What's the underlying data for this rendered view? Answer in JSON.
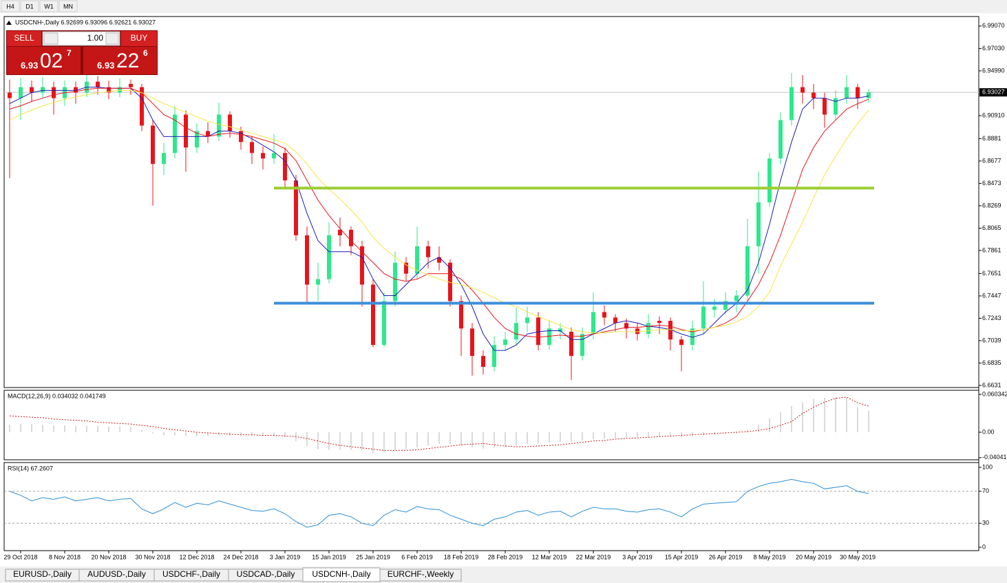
{
  "ui": {
    "timeframes": [
      "H4",
      "D1",
      "W1",
      "MN"
    ],
    "trade": {
      "sell": "SELL",
      "lot": "1.00",
      "buy": "BUY",
      "sell_price": {
        "big": "6.93",
        "pips": "02",
        "frac": "7"
      },
      "buy_price": {
        "big": "6.93",
        "pips": "22",
        "frac": "6"
      }
    },
    "tabs": [
      "EURUSD-,Daily",
      "AUDUSD-,Daily",
      "USDCHF-,Daily",
      "USDCAD-,Daily",
      "USDCNH-,Daily",
      "EURCHF-,Weekly"
    ],
    "active_tab": 4
  },
  "chart_data": [
    {
      "type": "candlestick",
      "title": "USDCNH-,Daily  6.92699 6.93096 6.92621 6.93027",
      "up_color": "#2de88c",
      "down_color": "#e8141b",
      "open": [
        6.93,
        6.925,
        6.935,
        6.93,
        6.935,
        6.925,
        6.935,
        6.93,
        6.94,
        6.935,
        6.93,
        6.938,
        6.935,
        6.9,
        6.865,
        6.875,
        6.91,
        6.88,
        6.895,
        6.89,
        6.91,
        6.895,
        6.885,
        6.875,
        6.87,
        6.875,
        6.85,
        6.8,
        6.755,
        6.76,
        6.805,
        6.805,
        6.79,
        6.755,
        6.7,
        6.74,
        6.775,
        6.765,
        6.79,
        6.78,
        6.775,
        6.74,
        6.715,
        6.69,
        6.68,
        6.7,
        6.705,
        6.72,
        6.725,
        6.7,
        6.712,
        6.712,
        6.69,
        6.71,
        6.73,
        6.725,
        6.72,
        6.715,
        6.71,
        6.722,
        6.722,
        6.705,
        6.7,
        6.715,
        6.732,
        6.732,
        6.74,
        6.745,
        6.79,
        6.83,
        6.87,
        6.905,
        6.935,
        6.93,
        6.925,
        6.91,
        6.925,
        6.935,
        6.925
      ],
      "high": [
        6.942,
        6.943,
        6.941,
        6.944,
        6.94,
        6.941,
        6.94,
        6.946,
        6.945,
        6.941,
        6.943,
        6.942,
        6.938,
        6.905,
        6.884,
        6.918,
        6.914,
        6.902,
        6.903,
        6.921,
        6.913,
        6.899,
        6.89,
        6.881,
        6.892,
        6.88,
        6.855,
        6.808,
        6.775,
        6.812,
        6.816,
        6.808,
        6.795,
        6.76,
        6.748,
        6.785,
        6.78,
        6.808,
        6.795,
        6.79,
        6.778,
        6.745,
        6.72,
        6.695,
        6.708,
        6.712,
        6.734,
        6.735,
        6.73,
        6.722,
        6.72,
        6.716,
        6.716,
        6.748,
        6.736,
        6.728,
        6.724,
        6.72,
        6.728,
        6.726,
        6.725,
        6.708,
        6.722,
        6.758,
        6.742,
        6.748,
        6.75,
        6.815,
        6.858,
        6.875,
        6.912,
        6.948,
        6.946,
        6.938,
        6.93,
        6.932,
        6.946,
        6.938,
        6.933
      ],
      "low": [
        6.852,
        6.905,
        6.922,
        6.925,
        6.91,
        6.918,
        6.92,
        6.926,
        6.928,
        6.924,
        6.926,
        6.928,
        6.895,
        6.827,
        6.855,
        6.87,
        6.858,
        6.875,
        6.884,
        6.886,
        6.889,
        6.878,
        6.865,
        6.86,
        6.865,
        6.842,
        6.795,
        6.738,
        6.74,
        6.756,
        6.79,
        6.782,
        6.735,
        6.698,
        6.698,
        6.735,
        6.758,
        6.76,
        6.77,
        6.768,
        6.735,
        6.69,
        6.672,
        6.673,
        6.676,
        6.695,
        6.7,
        6.712,
        6.695,
        6.696,
        6.705,
        6.668,
        6.686,
        6.705,
        6.718,
        6.712,
        6.706,
        6.704,
        6.706,
        6.71,
        6.695,
        6.676,
        6.695,
        6.71,
        6.725,
        6.728,
        6.73,
        6.74,
        6.765,
        6.826,
        6.865,
        6.9,
        6.92,
        6.915,
        6.898,
        6.905,
        6.92,
        6.915,
        6.921
      ],
      "close": [
        6.925,
        6.935,
        6.93,
        6.935,
        6.925,
        6.935,
        6.93,
        6.94,
        6.935,
        6.93,
        6.935,
        6.935,
        6.9,
        6.865,
        6.875,
        6.91,
        6.88,
        6.895,
        6.89,
        6.91,
        6.895,
        6.885,
        6.875,
        6.87,
        6.875,
        6.85,
        6.8,
        6.755,
        6.76,
        6.8,
        6.8,
        6.79,
        6.755,
        6.7,
        6.74,
        6.775,
        6.765,
        6.79,
        6.78,
        6.775,
        6.74,
        6.715,
        6.69,
        6.68,
        6.7,
        6.705,
        6.72,
        6.725,
        6.7,
        6.715,
        6.715,
        6.69,
        6.71,
        6.73,
        6.725,
        6.72,
        6.715,
        6.71,
        6.72,
        6.72,
        6.705,
        6.7,
        6.715,
        6.735,
        6.735,
        6.74,
        6.745,
        6.79,
        6.83,
        6.87,
        6.905,
        6.935,
        6.93,
        6.925,
        6.91,
        6.925,
        6.935,
        6.925,
        6.93027
      ],
      "moving_averages": [
        {
          "color": "#1c1cb4",
          "values": [
            6.92,
            6.925,
            6.93,
            6.932,
            6.932,
            6.932,
            6.932,
            6.935,
            6.935,
            6.934,
            6.934,
            6.934,
            6.925,
            6.905,
            6.89,
            6.89,
            6.89,
            6.89,
            6.89,
            6.895,
            6.895,
            6.893,
            6.888,
            6.882,
            6.876,
            6.868,
            6.85,
            6.82,
            6.795,
            6.785,
            6.785,
            6.785,
            6.78,
            6.76,
            6.745,
            6.745,
            6.755,
            6.765,
            6.775,
            6.78,
            6.77,
            6.755,
            6.735,
            6.71,
            6.695,
            6.695,
            6.7,
            6.71,
            6.712,
            6.713,
            6.713,
            6.705,
            6.705,
            6.71,
            6.715,
            6.72,
            6.722,
            6.72,
            6.717,
            6.716,
            6.714,
            6.71,
            6.707,
            6.71,
            6.72,
            6.73,
            6.738,
            6.75,
            6.775,
            6.81,
            6.85,
            6.885,
            6.915,
            6.925,
            6.925,
            6.922,
            6.925,
            6.925,
            6.927
          ]
        },
        {
          "color": "#e8141b",
          "values": [
            6.915,
            6.918,
            6.922,
            6.925,
            6.928,
            6.93,
            6.931,
            6.933,
            6.934,
            6.934,
            6.934,
            6.934,
            6.93,
            6.92,
            6.91,
            6.905,
            6.898,
            6.893,
            6.89,
            6.892,
            6.893,
            6.892,
            6.89,
            6.887,
            6.884,
            6.879,
            6.868,
            6.85,
            6.832,
            6.818,
            6.806,
            6.795,
            6.785,
            6.775,
            6.765,
            6.76,
            6.758,
            6.76,
            6.765,
            6.765,
            6.765,
            6.76,
            6.75,
            6.738,
            6.725,
            6.715,
            6.71,
            6.708,
            6.707,
            6.708,
            6.709,
            6.708,
            6.708,
            6.71,
            6.712,
            6.714,
            6.716,
            6.716,
            6.717,
            6.718,
            6.717,
            6.714,
            6.712,
            6.714,
            6.716,
            6.72,
            6.726,
            6.74,
            6.755,
            6.775,
            6.8,
            6.83,
            6.86,
            6.88,
            6.895,
            6.905,
            6.915,
            6.92,
            6.924
          ]
        },
        {
          "color": "#f5e642",
          "values": [
            6.905,
            6.91,
            6.914,
            6.918,
            6.921,
            6.924,
            6.926,
            6.928,
            6.93,
            6.931,
            6.932,
            6.932,
            6.93,
            6.925,
            6.92,
            6.916,
            6.912,
            6.908,
            6.904,
            6.901,
            6.899,
            6.896,
            6.893,
            6.89,
            6.887,
            6.884,
            6.876,
            6.865,
            6.852,
            6.842,
            6.833,
            6.823,
            6.812,
            6.798,
            6.788,
            6.78,
            6.773,
            6.768,
            6.764,
            6.76,
            6.757,
            6.755,
            6.752,
            6.748,
            6.743,
            6.738,
            6.735,
            6.73,
            6.726,
            6.722,
            6.718,
            6.714,
            6.712,
            6.711,
            6.711,
            6.712,
            6.712,
            6.712,
            6.713,
            6.714,
            6.714,
            6.713,
            6.713,
            6.714,
            6.716,
            6.718,
            6.721,
            6.726,
            6.735,
            6.748,
            6.772,
            6.792,
            6.812,
            6.834,
            6.855,
            6.872,
            6.888,
            6.902,
            6.914
          ]
        }
      ],
      "hlines": [
        {
          "value": 6.843,
          "color": "#9acd32"
        },
        {
          "value": 6.7381,
          "color": "#3d8fd9"
        }
      ],
      "last_price": 6.93027,
      "ylim": [
        6.6612,
        6.9994
      ],
      "yticks": [
        {
          "value": 6.9907,
          "label": "6.99070"
        },
        {
          "value": 6.9703,
          "label": "6.97030"
        },
        {
          "value": 6.9499,
          "label": "6.94990"
        },
        {
          "value": 6.9091,
          "label": "6.90910"
        },
        6.8881,
        6.8677,
        6.8473,
        6.8269,
        6.8065,
        6.7861,
        6.7651,
        6.7447,
        6.7243,
        6.7039,
        6.6835,
        6.6631
      ]
    },
    {
      "type": "macd",
      "title": "MACD(12,26,9) 0.034032 0.041749",
      "histogram_color": "#b4b4b4",
      "signal_color": "#d01818",
      "histogram": [
        0.012,
        0.013,
        0.013,
        0.012,
        0.011,
        0.011,
        0.01,
        0.01,
        0.01,
        0.009,
        0.009,
        0.008,
        0.004,
        -0.002,
        -0.005,
        -0.005,
        -0.006,
        -0.006,
        -0.006,
        -0.005,
        -0.005,
        -0.005,
        -0.006,
        -0.006,
        -0.006,
        -0.008,
        -0.014,
        -0.022,
        -0.027,
        -0.028,
        -0.028,
        -0.028,
        -0.029,
        -0.033,
        -0.032,
        -0.029,
        -0.027,
        -0.024,
        -0.021,
        -0.019,
        -0.019,
        -0.021,
        -0.024,
        -0.026,
        -0.025,
        -0.024,
        -0.021,
        -0.019,
        -0.018,
        -0.016,
        -0.015,
        -0.015,
        -0.013,
        -0.011,
        -0.01,
        -0.009,
        -0.008,
        -0.008,
        -0.007,
        -0.007,
        -0.007,
        -0.008,
        -0.007,
        -0.005,
        -0.004,
        -0.003,
        -0.002,
        0.004,
        0.012,
        0.022,
        0.032,
        0.042,
        0.048,
        0.053,
        0.055,
        0.056,
        0.055,
        0.04,
        0.034032
      ],
      "signal": [
        0.026,
        0.025,
        0.024,
        0.023,
        0.021,
        0.02,
        0.019,
        0.018,
        0.016,
        0.015,
        0.014,
        0.013,
        0.011,
        0.009,
        0.006,
        0.004,
        0.002,
        0.0,
        -0.001,
        -0.002,
        -0.003,
        -0.004,
        -0.004,
        -0.005,
        -0.005,
        -0.006,
        -0.007,
        -0.01,
        -0.014,
        -0.018,
        -0.021,
        -0.023,
        -0.025,
        -0.027,
        -0.029,
        -0.029,
        -0.029,
        -0.028,
        -0.026,
        -0.024,
        -0.022,
        -0.02,
        -0.019,
        -0.018,
        -0.02,
        -0.022,
        -0.023,
        -0.023,
        -0.022,
        -0.021,
        -0.02,
        -0.018,
        -0.016,
        -0.014,
        -0.013,
        -0.011,
        -0.01,
        -0.009,
        -0.008,
        -0.007,
        -0.006,
        -0.005,
        -0.004,
        -0.003,
        -0.002,
        -0.001,
        0.0,
        0.001,
        0.003,
        0.006,
        0.011,
        0.017,
        0.03,
        0.04,
        0.048,
        0.054,
        0.056,
        0.047,
        0.041749
      ],
      "ylim": [
        -0.0439,
        0.0669
      ],
      "yticks": [
        0.060342,
        {
          "value": 0,
          "label": "0.00"
        },
        -0.04041
      ]
    },
    {
      "type": "line",
      "title": "RSI(14) 67.2607",
      "color": "#2a8fd6",
      "categories": [
        null,
        "29 Oct 2018",
        null,
        null,
        null,
        "8 Nov 2018",
        null,
        null,
        null,
        "20 Nov 2018",
        null,
        null,
        null,
        "30 Nov 2018",
        null,
        null,
        null,
        "12 Dec 2018",
        null,
        null,
        null,
        "24 Dec 2018",
        null,
        null,
        null,
        "3 Jan 2019",
        null,
        null,
        null,
        "15 Jan 2019",
        null,
        null,
        null,
        "25 Jan 2019",
        null,
        null,
        null,
        "6 Feb 2019",
        null,
        null,
        null,
        "18 Feb 2019",
        null,
        null,
        null,
        "28 Feb 2019",
        null,
        null,
        null,
        "12 Mar 2019",
        null,
        null,
        null,
        "22 Mar 2019",
        null,
        null,
        null,
        "3 Apr 2019",
        null,
        null,
        null,
        "15 Apr 2019",
        null,
        null,
        null,
        "26 Apr 2019",
        null,
        null,
        null,
        "8 May 2019",
        null,
        null,
        null,
        "20 May 2019",
        null,
        null,
        null,
        "30 May 2019",
        null
      ],
      "values": [
        70,
        65,
        58,
        62,
        60,
        63,
        58,
        60,
        62,
        58,
        60,
        61,
        48,
        42,
        48,
        56,
        50,
        55,
        53,
        58,
        54,
        50,
        46,
        45,
        48,
        42,
        32,
        25,
        28,
        40,
        42,
        38,
        30,
        27,
        40,
        47,
        44,
        51,
        48,
        47,
        40,
        35,
        30,
        27,
        35,
        38,
        44,
        46,
        40,
        44,
        45,
        38,
        45,
        50,
        48,
        48,
        45,
        44,
        47,
        48,
        44,
        38,
        48,
        54,
        55,
        56,
        57,
        70,
        76,
        80,
        82,
        85,
        82,
        80,
        73,
        75,
        77,
        70,
        67.2607
      ],
      "levels": [
        70,
        30
      ],
      "ylim": [
        -4.3,
        106
      ],
      "yticks": [
        100,
        70,
        30,
        0
      ]
    }
  ]
}
